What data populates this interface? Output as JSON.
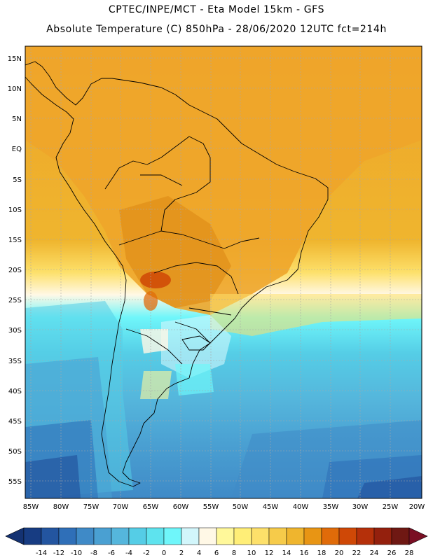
{
  "title": {
    "line1": "CPTEC/INPE/MCT -  Eta Model 15km - GFS",
    "line2": "Absolute Temperature (C) 850hPa - 28/06/2020 12UTC fct=214h"
  },
  "map": {
    "variable": "Absolute Temperature",
    "units": "C",
    "level": "850hPa",
    "lat_labels": [
      "15N",
      "10N",
      "5N",
      "EQ",
      "5S",
      "10S",
      "15S",
      "20S",
      "25S",
      "30S",
      "35S",
      "40S",
      "45S",
      "50S",
      "55S"
    ],
    "lon_labels": [
      "85W",
      "80W",
      "75W",
      "70W",
      "65W",
      "60W",
      "55W",
      "50W",
      "45W",
      "40W",
      "35W",
      "30W",
      "25W",
      "20W"
    ],
    "lat_range": [
      17,
      -58
    ],
    "lon_range": [
      -86,
      -20
    ]
  },
  "colorbar": {
    "labels": [
      "-14",
      "-12",
      "-10",
      "-8",
      "-6",
      "-4",
      "-2",
      "0",
      "2",
      "4",
      "6",
      "8",
      "10",
      "12",
      "14",
      "16",
      "18",
      "20",
      "22",
      "24",
      "26",
      "28"
    ],
    "colors": [
      "#173c82",
      "#2355a0",
      "#2f6fb8",
      "#3f8ac7",
      "#4aa0d2",
      "#55b6dc",
      "#55cde6",
      "#5ee3ee",
      "#6ff6fa",
      "#d2f6fb",
      "#fff8e6",
      "#fff89a",
      "#ffee77",
      "#fde06a",
      "#f6cb4a",
      "#efb52e",
      "#e89514",
      "#e06b09",
      "#cf4806",
      "#b5300a",
      "#94200d",
      "#6f1813"
    ],
    "low_end_color": "#143272",
    "high_end_color": "#7a0f24"
  }
}
